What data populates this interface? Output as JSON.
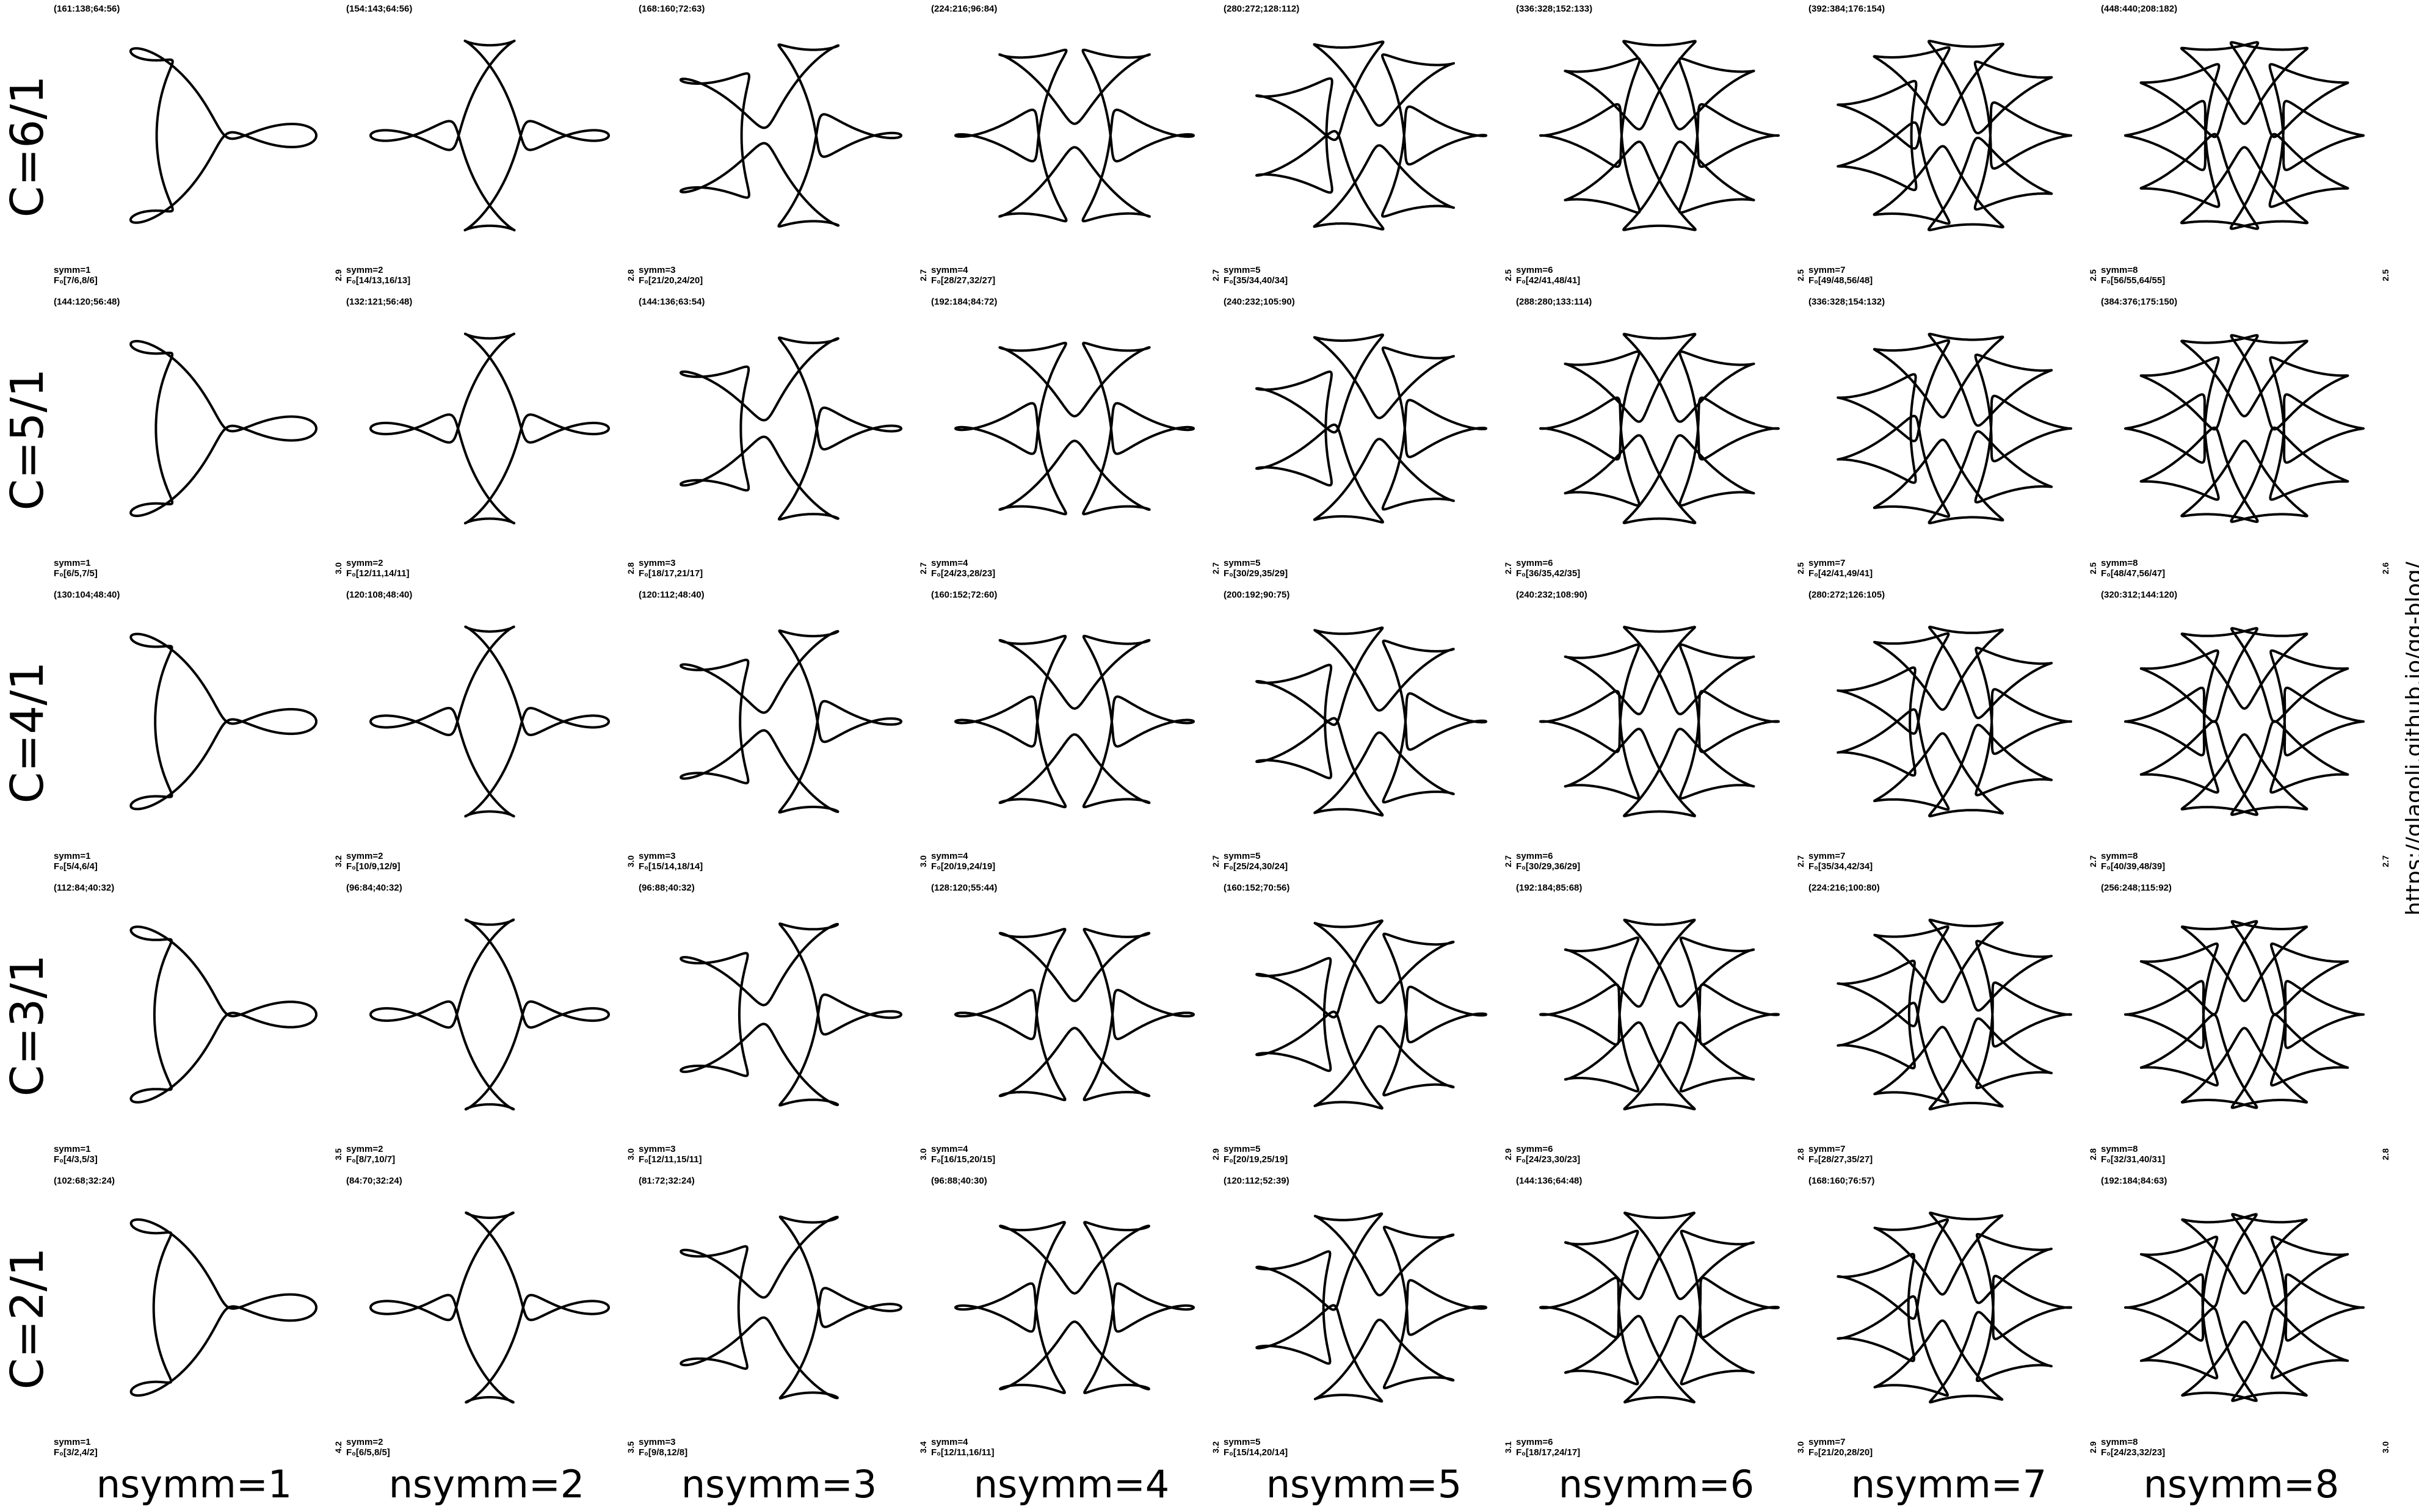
{
  "url": "https://glagolj.github.io/gg-blog/",
  "row_labels": [
    "C=6/1",
    "C=5/1",
    "C=4/1",
    "C=3/1",
    "C=2/1"
  ],
  "col_labels": [
    "nsymm=1",
    "nsymm=2",
    "nsymm=3",
    "nsymm=4",
    "nsymm=5",
    "nsymm=6",
    "nsymm=7",
    "nsymm=8"
  ],
  "cells": [
    [
      {
        "params": "(161:138;64:56)",
        "symm": "symm=1",
        "f": "F₀[7/6,8/6]",
        "scale": "2.9",
        "c": 6,
        "n": 1
      },
      {
        "params": "(154:143;64:56)",
        "symm": "symm=2",
        "f": "F₀[14/13,16/13]",
        "scale": "2.8",
        "c": 6,
        "n": 2
      },
      {
        "params": "(168:160;72:63)",
        "symm": "symm=3",
        "f": "F₀[21/20,24/20]",
        "scale": "2.7",
        "c": 6,
        "n": 3
      },
      {
        "params": "(224:216;96:84)",
        "symm": "symm=4",
        "f": "F₀[28/27,32/27]",
        "scale": "2.7",
        "c": 6,
        "n": 4
      },
      {
        "params": "(280:272;128:112)",
        "symm": "symm=5",
        "f": "F₀[35/34,40/34]",
        "scale": "2.5",
        "c": 6,
        "n": 5
      },
      {
        "params": "(336:328;152:133)",
        "symm": "symm=6",
        "f": "F₀[42/41,48/41]",
        "scale": "2.5",
        "c": 6,
        "n": 6
      },
      {
        "params": "(392:384;176:154)",
        "symm": "symm=7",
        "f": "F₀[49/48,56/48]",
        "scale": "2.5",
        "c": 6,
        "n": 7
      },
      {
        "params": "(448:440;208:182)",
        "symm": "symm=8",
        "f": "F₀[56/55,64/55]",
        "scale": "2.5",
        "c": 6,
        "n": 8
      }
    ],
    [
      {
        "params": "(144:120;56:48)",
        "symm": "symm=1",
        "f": "F₀[6/5,7/5]",
        "scale": "3.0",
        "c": 5,
        "n": 1
      },
      {
        "params": "(132:121;56:48)",
        "symm": "symm=2",
        "f": "F₀[12/11,14/11]",
        "scale": "2.8",
        "c": 5,
        "n": 2
      },
      {
        "params": "(144:136;63:54)",
        "symm": "symm=3",
        "f": "F₀[18/17,21/17]",
        "scale": "2.7",
        "c": 5,
        "n": 3
      },
      {
        "params": "(192:184;84:72)",
        "symm": "symm=4",
        "f": "F₀[24/23,28/23]",
        "scale": "2.7",
        "c": 5,
        "n": 4
      },
      {
        "params": "(240:232;105:90)",
        "symm": "symm=5",
        "f": "F₀[30/29,35/29]",
        "scale": "2.7",
        "c": 5,
        "n": 5
      },
      {
        "params": "(288:280;133:114)",
        "symm": "symm=6",
        "f": "F₀[36/35,42/35]",
        "scale": "2.5",
        "c": 5,
        "n": 6
      },
      {
        "params": "(336:328;154:132)",
        "symm": "symm=7",
        "f": "F₀[42/41,49/41]",
        "scale": "2.5",
        "c": 5,
        "n": 7
      },
      {
        "params": "(384:376;175:150)",
        "symm": "symm=8",
        "f": "F₀[48/47,56/47]",
        "scale": "2.6",
        "c": 5,
        "n": 8
      }
    ],
    [
      {
        "params": "(130:104;48:40)",
        "symm": "symm=1",
        "f": "F₀[5/4,6/4]",
        "scale": "3.2",
        "c": 4,
        "n": 1
      },
      {
        "params": "(120:108;48:40)",
        "symm": "symm=2",
        "f": "F₀[10/9,12/9]",
        "scale": "3.0",
        "c": 4,
        "n": 2
      },
      {
        "params": "(120:112;48:40)",
        "symm": "symm=3",
        "f": "F₀[15/14,18/14]",
        "scale": "3.0",
        "c": 4,
        "n": 3
      },
      {
        "params": "(160:152;72:60)",
        "symm": "symm=4",
        "f": "F₀[20/19,24/19]",
        "scale": "2.7",
        "c": 4,
        "n": 4
      },
      {
        "params": "(200:192;90:75)",
        "symm": "symm=5",
        "f": "F₀[25/24,30/24]",
        "scale": "2.7",
        "c": 4,
        "n": 5
      },
      {
        "params": "(240:232;108:90)",
        "symm": "symm=6",
        "f": "F₀[30/29,36/29]",
        "scale": "2.7",
        "c": 4,
        "n": 6
      },
      {
        "params": "(280:272;126:105)",
        "symm": "symm=7",
        "f": "F₀[35/34,42/34]",
        "scale": "2.7",
        "c": 4,
        "n": 7
      },
      {
        "params": "(320:312;144:120)",
        "symm": "symm=8",
        "f": "F₀[40/39,48/39]",
        "scale": "2.7",
        "c": 4,
        "n": 8
      }
    ],
    [
      {
        "params": "(112:84;40:32)",
        "symm": "symm=1",
        "f": "F₀[4/3,5/3]",
        "scale": "3.5",
        "c": 3,
        "n": 1
      },
      {
        "params": "(96:84;40:32)",
        "symm": "symm=2",
        "f": "F₀[8/7,10/7]",
        "scale": "3.0",
        "c": 3,
        "n": 2
      },
      {
        "params": "(96:88;40:32)",
        "symm": "symm=3",
        "f": "F₀[12/11,15/11]",
        "scale": "3.0",
        "c": 3,
        "n": 3
      },
      {
        "params": "(128:120;55:44)",
        "symm": "symm=4",
        "f": "F₀[16/15,20/15]",
        "scale": "2.9",
        "c": 3,
        "n": 4
      },
      {
        "params": "(160:152;70:56)",
        "symm": "symm=5",
        "f": "F₀[20/19,25/19]",
        "scale": "2.9",
        "c": 3,
        "n": 5
      },
      {
        "params": "(192:184;85:68)",
        "symm": "symm=6",
        "f": "F₀[24/23,30/23]",
        "scale": "2.8",
        "c": 3,
        "n": 6
      },
      {
        "params": "(224:216;100:80)",
        "symm": "symm=7",
        "f": "F₀[28/27,35/27]",
        "scale": "2.8",
        "c": 3,
        "n": 7
      },
      {
        "params": "(256:248;115:92)",
        "symm": "symm=8",
        "f": "F₀[32/31,40/31]",
        "scale": "2.8",
        "c": 3,
        "n": 8
      }
    ],
    [
      {
        "params": "(102:68;32:24)",
        "symm": "symm=1",
        "f": "F₀[3/2,4/2]",
        "scale": "4.2",
        "c": 2,
        "n": 1
      },
      {
        "params": "(84:70;32:24)",
        "symm": "symm=2",
        "f": "F₀[6/5,8/5]",
        "scale": "3.5",
        "c": 2,
        "n": 2
      },
      {
        "params": "(81:72;32:24)",
        "symm": "symm=3",
        "f": "F₀[9/8,12/8]",
        "scale": "3.4",
        "c": 2,
        "n": 3
      },
      {
        "params": "(96:88;40:30)",
        "symm": "symm=4",
        "f": "F₀[12/11,16/11]",
        "scale": "3.2",
        "c": 2,
        "n": 4
      },
      {
        "params": "(120:112;52:39)",
        "symm": "symm=5",
        "f": "F₀[15/14,20/14]",
        "scale": "3.1",
        "c": 2,
        "n": 5
      },
      {
        "params": "(144:136;64:48)",
        "symm": "symm=6",
        "f": "F₀[18/17,24/17]",
        "scale": "3.0",
        "c": 2,
        "n": 6
      },
      {
        "params": "(168:160;76:57)",
        "symm": "symm=7",
        "f": "F₀[21/20,28/20]",
        "scale": "2.9",
        "c": 2,
        "n": 7
      },
      {
        "params": "(192:184;84:63)",
        "symm": "symm=8",
        "f": "F₀[24/23,32/23]",
        "scale": "3.0",
        "c": 2,
        "n": 8
      }
    ]
  ]
}
